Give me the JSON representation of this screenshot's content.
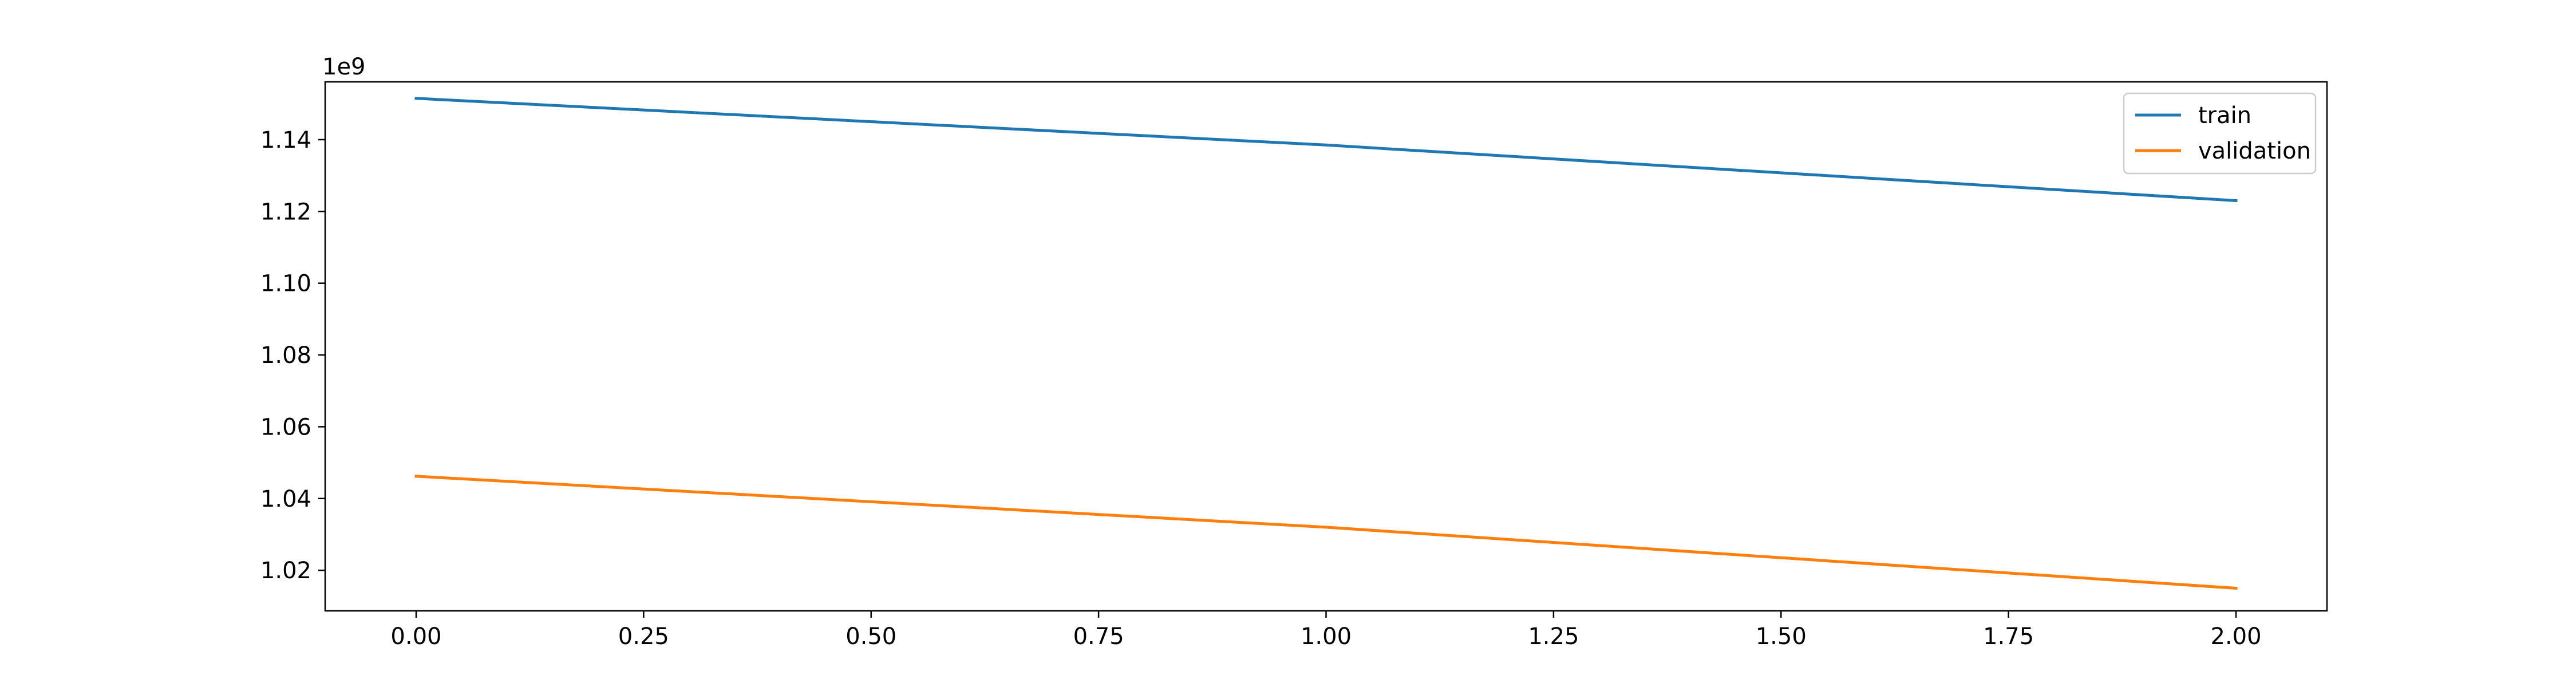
{
  "chart_data": {
    "type": "line",
    "title": "",
    "xlabel": "",
    "ylabel": "",
    "offset_label": "1e9",
    "scale": 1000000000,
    "xlim": [
      -0.1,
      2.1
    ],
    "ylim": [
      1.0087,
      1.1561
    ],
    "x_ticks": [
      0.0,
      0.25,
      0.5,
      0.75,
      1.0,
      1.25,
      1.5,
      1.75,
      2.0
    ],
    "x_tick_labels": [
      "0.00",
      "0.25",
      "0.50",
      "0.75",
      "1.00",
      "1.25",
      "1.50",
      "1.75",
      "2.00"
    ],
    "y_ticks": [
      1.02,
      1.04,
      1.06,
      1.08,
      1.1,
      1.12,
      1.14
    ],
    "y_tick_labels": [
      "1.02",
      "1.04",
      "1.06",
      "1.08",
      "1.10",
      "1.12",
      "1.14"
    ],
    "grid": false,
    "legend_position": "top-right",
    "x": [
      0,
      1,
      2
    ],
    "series": [
      {
        "name": "train",
        "color": "#1f77b4",
        "values": [
          1.1515,
          1.1385,
          1.123
        ]
      },
      {
        "name": "validation",
        "color": "#ff7f0e",
        "values": [
          1.0462,
          1.032,
          1.015
        ]
      }
    ]
  }
}
